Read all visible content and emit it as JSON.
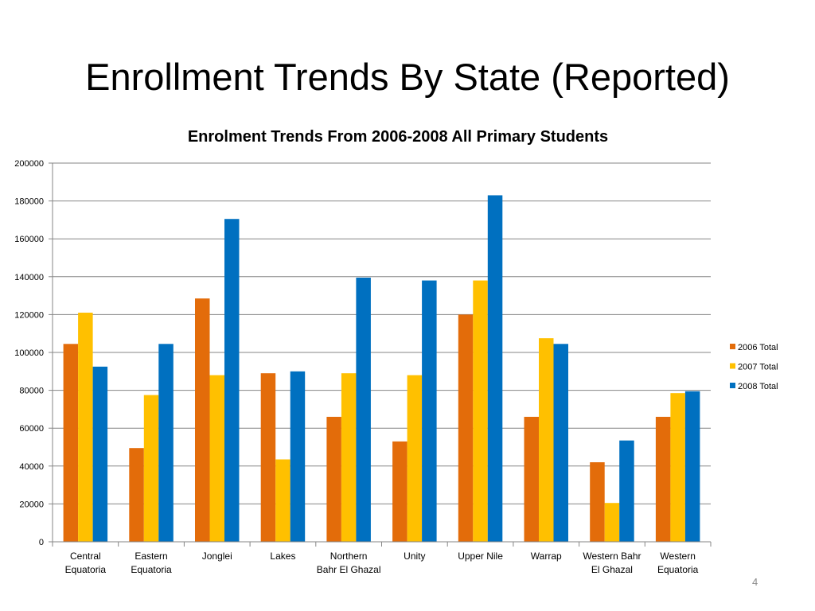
{
  "slide": {
    "title": "Enrollment Trends By State (Reported)",
    "number": "4"
  },
  "chart_data": {
    "type": "bar",
    "title": "Enrolment Trends From 2006-2008 All Primary Students",
    "xlabel": "",
    "ylabel": "",
    "ylim": [
      0,
      200000
    ],
    "yticks": [
      0,
      20000,
      40000,
      60000,
      80000,
      100000,
      120000,
      140000,
      160000,
      180000,
      200000
    ],
    "grid": true,
    "legend_position": "right",
    "categories": [
      [
        "Central",
        "Equatoria"
      ],
      [
        "Eastern",
        "Equatoria"
      ],
      [
        "Jonglei"
      ],
      [
        "Lakes"
      ],
      [
        "Northern",
        "Bahr El Ghazal"
      ],
      [
        "Unity"
      ],
      [
        "Upper Nile"
      ],
      [
        "Warrap"
      ],
      [
        "Western Bahr",
        "El Ghazal"
      ],
      [
        "Western",
        "Equatoria"
      ]
    ],
    "series": [
      {
        "name": "2006 Total",
        "color": "#e36c0a",
        "values": [
          104500,
          49500,
          128500,
          89000,
          66000,
          53000,
          120000,
          66000,
          42000,
          66000
        ]
      },
      {
        "name": "2007 Total",
        "color": "#ffc000",
        "values": [
          121000,
          77500,
          88000,
          43500,
          89000,
          88000,
          138000,
          107500,
          20500,
          78500
        ]
      },
      {
        "name": "2008 Total",
        "color": "#0070c0",
        "values": [
          92500,
          104500,
          170500,
          90000,
          139500,
          138000,
          183000,
          104500,
          53500,
          79500
        ]
      }
    ]
  }
}
